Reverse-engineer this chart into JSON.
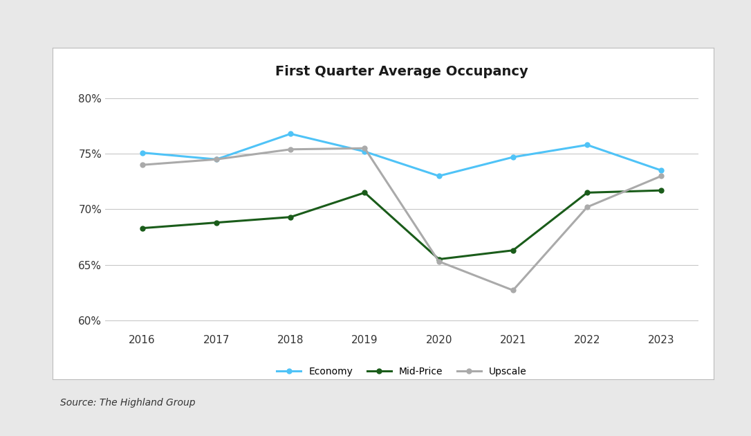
{
  "title": "First Quarter Average Occupancy",
  "years": [
    2016,
    2017,
    2018,
    2019,
    2020,
    2021,
    2022,
    2023
  ],
  "economy": [
    75.1,
    74.5,
    76.8,
    75.2,
    73.0,
    74.7,
    75.8,
    73.5
  ],
  "mid_price": [
    68.3,
    68.8,
    69.3,
    71.5,
    65.5,
    66.3,
    71.5,
    71.7
  ],
  "upscale": [
    74.0,
    74.5,
    75.4,
    75.5,
    65.3,
    62.7,
    70.2,
    73.0
  ],
  "economy_color": "#4FC3F7",
  "mid_price_color": "#1a5c1a",
  "upscale_color": "#aaaaaa",
  "ylim": [
    59,
    81
  ],
  "yticks": [
    60,
    65,
    70,
    75,
    80
  ],
  "ytick_labels": [
    "60%",
    "65%",
    "70%",
    "75%",
    "80%"
  ],
  "source_text": "Source: The Highland Group",
  "outer_bg_color": "#e8e8e8",
  "inner_bg_color": "#ffffff",
  "grid_color": "#c8c8c8",
  "line_width": 2.2,
  "marker_size": 5,
  "title_fontsize": 14,
  "legend_fontsize": 10,
  "tick_fontsize": 11,
  "source_fontsize": 10
}
